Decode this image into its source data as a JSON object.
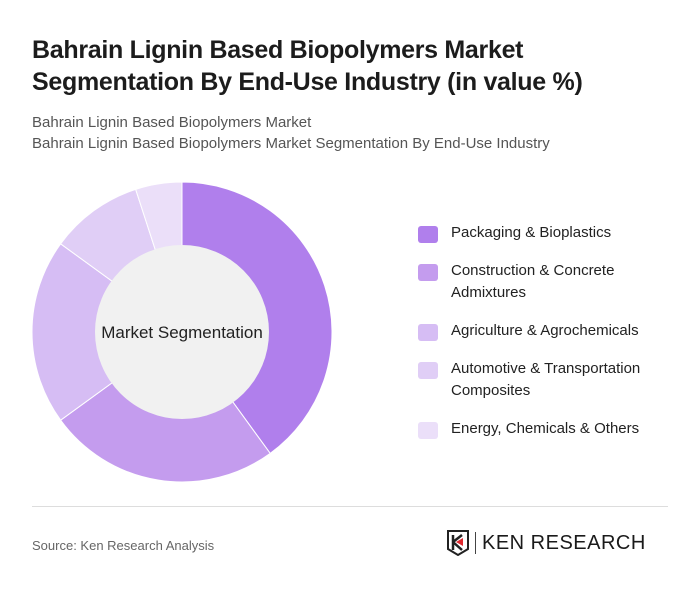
{
  "header": {
    "title": "Bahrain Lignin Based Biopolymers Market Segmentation By End-Use Industry (in value %)",
    "subtitle1": "Bahrain Lignin Based Biopolymers Market",
    "subtitle2": "Bahrain Lignin Based Biopolymers Market Segmentation By End-Use Industry"
  },
  "chart_data": {
    "type": "pie",
    "variant": "donut",
    "center_label": "Market Segmentation",
    "categories": [
      "Packaging & Bioplastics",
      "Construction & Concrete Admixtures",
      "Agriculture & Agrochemicals",
      "Automotive & Transportation Composites",
      "Energy, Chemicals & Others"
    ],
    "values": [
      40,
      25,
      20,
      10,
      5
    ],
    "colors": [
      "#b07fec",
      "#c49cee",
      "#d6bdf4",
      "#e0cef6",
      "#ebdff9"
    ],
    "legend_position": "right"
  },
  "footer": {
    "source": "Source: Ken Research Analysis",
    "logo_text": "KEN RESEARCH"
  }
}
